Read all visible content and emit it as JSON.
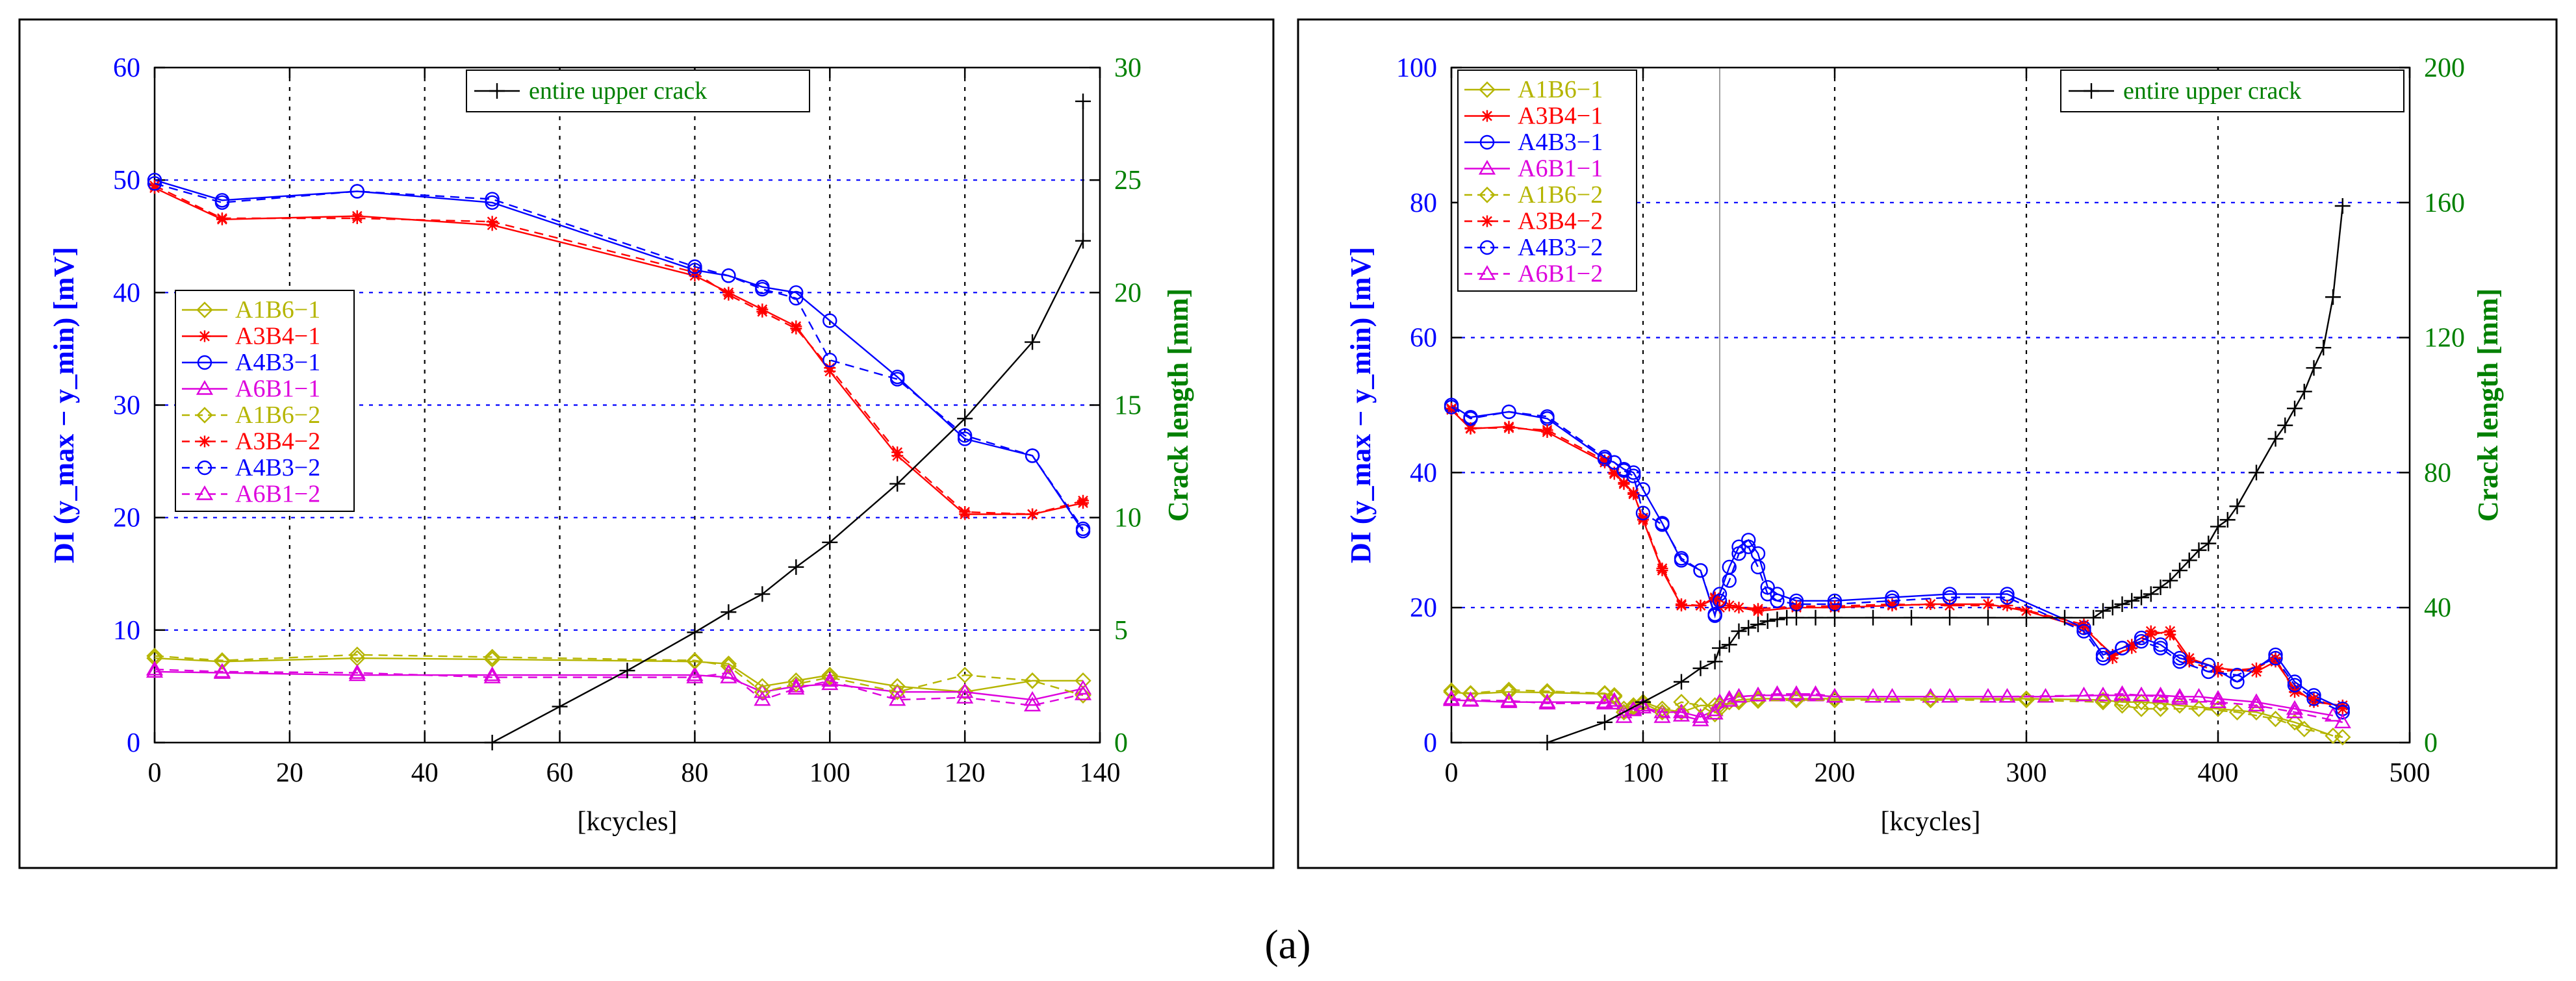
{
  "caption": "(a)",
  "colors": {
    "A1B6": "#b5b500",
    "A3B4": "#ff0000",
    "A4B3": "#0000ff",
    "A6B1": "#dd00dd",
    "crack": "#000000",
    "left_axis": "#0000ff",
    "right_axis": "#008000",
    "grid_y": "#0000ff",
    "grid_x": "#000000"
  },
  "chart_data": [
    {
      "type": "line",
      "xlabel": "[kcycles]",
      "ylabel_left": "DI (y_max − y_min) [mV]",
      "ylabel_right": "Crack length [mm]",
      "xlim": [
        0,
        140
      ],
      "ylim_left": [
        0,
        60
      ],
      "ylim_right": [
        0,
        30
      ],
      "xticks": [
        "0",
        "20",
        "40",
        "60",
        "80",
        "100",
        "120",
        "140"
      ],
      "yticks_left": [
        "0",
        "10",
        "20",
        "30",
        "40",
        "50",
        "60"
      ],
      "yticks_right": [
        "0",
        "5",
        "10",
        "15",
        "20",
        "25",
        "30"
      ],
      "extra_xtick": null,
      "legend_di": [
        "A1B6−1",
        "A3B4−1",
        "A4B3−1",
        "A6B1−1",
        "A1B6−2",
        "A3B4−2",
        "A4B3−2",
        "A6B1−2"
      ],
      "legend_crack": "entire upper crack",
      "series": [
        {
          "name": "A1B6−1",
          "sensor": "A1B6",
          "dash": false,
          "marker": "diamond",
          "x": [
            0,
            10,
            30,
            50,
            80,
            85,
            90,
            95,
            100,
            110,
            120,
            130,
            137.5
          ],
          "y": [
            7.5,
            7.2,
            7.5,
            7.4,
            7.2,
            7.0,
            5.0,
            5.5,
            6.0,
            5.0,
            4.5,
            5.5,
            5.5
          ]
        },
        {
          "name": "A3B4−1",
          "sensor": "A3B4",
          "dash": false,
          "marker": "star",
          "x": [
            0,
            10,
            30,
            50,
            80,
            85,
            90,
            95,
            100,
            110,
            120,
            130,
            137.5
          ],
          "y": [
            49.3,
            46.5,
            46.8,
            46.0,
            41.5,
            40.0,
            38.5,
            37.0,
            33.0,
            25.5,
            20.3,
            20.3,
            21.3
          ]
        },
        {
          "name": "A4B3−1",
          "sensor": "A4B3",
          "dash": false,
          "marker": "circle",
          "x": [
            0,
            10,
            30,
            50,
            80,
            85,
            90,
            95,
            100,
            110,
            120,
            130,
            137.5
          ],
          "y": [
            50.0,
            48.2,
            49.0,
            48.0,
            42.0,
            41.5,
            40.5,
            40.0,
            37.5,
            32.5,
            27.0,
            25.5,
            18.8
          ]
        },
        {
          "name": "A6B1−1",
          "sensor": "A6B1",
          "dash": false,
          "marker": "triangle",
          "x": [
            0,
            10,
            30,
            50,
            80,
            85,
            90,
            95,
            100,
            110,
            120,
            130,
            137.5
          ],
          "y": [
            6.3,
            6.2,
            6.0,
            6.0,
            6.0,
            5.8,
            4.5,
            5.0,
            5.2,
            4.5,
            4.5,
            3.8,
            4.8
          ]
        },
        {
          "name": "A1B6−2",
          "sensor": "A1B6",
          "dash": true,
          "marker": "diamond",
          "x": [
            0,
            10,
            30,
            50,
            80,
            85,
            90,
            95,
            100,
            110,
            120,
            130,
            137.5
          ],
          "y": [
            7.7,
            7.3,
            7.8,
            7.6,
            7.3,
            6.8,
            4.5,
            5.2,
            5.8,
            4.5,
            6.0,
            5.5,
            4.2
          ]
        },
        {
          "name": "A3B4−2",
          "sensor": "A3B4",
          "dash": true,
          "marker": "star",
          "x": [
            0,
            10,
            30,
            50,
            80,
            85,
            90,
            95,
            100,
            110,
            120,
            130,
            137.5
          ],
          "y": [
            49.5,
            46.6,
            46.6,
            46.3,
            41.8,
            39.8,
            38.3,
            36.8,
            33.3,
            25.8,
            20.5,
            20.3,
            21.5
          ]
        },
        {
          "name": "A4B3−2",
          "sensor": "A4B3",
          "dash": true,
          "marker": "circle",
          "x": [
            0,
            10,
            30,
            50,
            80,
            85,
            90,
            95,
            100,
            110,
            120,
            130,
            137.5
          ],
          "y": [
            49.7,
            48.0,
            49.0,
            48.3,
            42.3,
            41.5,
            40.3,
            39.5,
            34.0,
            32.3,
            27.3,
            25.5,
            19.0
          ]
        },
        {
          "name": "A6B1−2",
          "sensor": "A6B1",
          "dash": true,
          "marker": "triangle",
          "x": [
            0,
            10,
            30,
            50,
            80,
            85,
            90,
            95,
            100,
            110,
            120,
            130,
            137.5
          ],
          "y": [
            6.5,
            6.3,
            6.2,
            5.8,
            5.8,
            6.2,
            3.8,
            4.8,
            5.5,
            3.8,
            4.0,
            3.3,
            4.3
          ]
        }
      ],
      "crack": {
        "name": "entire upper crack",
        "x": [
          50,
          60,
          70,
          80,
          85,
          90,
          95,
          100,
          110,
          120,
          130,
          137.5,
          137.5
        ],
        "y": [
          0,
          1.6,
          3.2,
          4.9,
          5.8,
          6.6,
          7.8,
          8.9,
          11.5,
          14.4,
          17.8,
          22.3,
          28.5
        ]
      }
    },
    {
      "type": "line",
      "xlabel": "[kcycles]",
      "ylabel_left": "DI (y_max − y_min) [mV]",
      "ylabel_right": "Crack length [mm]",
      "xlim": [
        0,
        500
      ],
      "ylim_left": [
        0,
        100
      ],
      "ylim_right": [
        0,
        200
      ],
      "xticks": [
        "0",
        "100",
        "200",
        "300",
        "400",
        "500"
      ],
      "yticks_left": [
        "0",
        "20",
        "40",
        "60",
        "80",
        "100"
      ],
      "yticks_right": [
        "0",
        "40",
        "80",
        "120",
        "160",
        "200"
      ],
      "extra_xtick": {
        "label": "II",
        "x": 140
      },
      "legend_di": [
        "A1B6−1",
        "A3B4−1",
        "A4B3−1",
        "A6B1−1",
        "A1B6−2",
        "A3B4−2",
        "A4B3−2",
        "A6B1−2"
      ],
      "legend_crack": "entire upper crack",
      "series": [
        {
          "name": "A1B6−1",
          "sensor": "A1B6",
          "dash": false,
          "marker": "diamond",
          "x": [
            0,
            10,
            30,
            50,
            80,
            85,
            90,
            95,
            100,
            110,
            120,
            130,
            137.5,
            140,
            145,
            150,
            160,
            180,
            200,
            250,
            300,
            340,
            350,
            360,
            370,
            380,
            400,
            420,
            440,
            460
          ],
          "y": [
            7.5,
            7.2,
            7.5,
            7.4,
            7.2,
            7.0,
            5.0,
            5.5,
            6.0,
            5.0,
            4.5,
            5.5,
            5.5,
            5.0,
            6.0,
            6.3,
            6.5,
            6.5,
            6.5,
            6.5,
            6.5,
            6.3,
            6.0,
            6.0,
            5.8,
            5.5,
            5.0,
            4.5,
            3.0,
            1.0
          ]
        },
        {
          "name": "A3B4−1",
          "sensor": "A3B4",
          "dash": false,
          "marker": "star",
          "x": [
            0,
            10,
            30,
            50,
            80,
            85,
            90,
            95,
            100,
            110,
            120,
            130,
            137.5,
            140,
            150,
            160,
            180,
            200,
            230,
            250,
            280,
            300,
            330,
            345,
            355,
            365,
            375,
            385,
            400,
            420,
            430,
            440,
            450,
            465
          ],
          "y": [
            49.3,
            46.5,
            46.8,
            46.0,
            41.5,
            40.0,
            38.5,
            37.0,
            33.0,
            25.5,
            20.3,
            20.3,
            21.3,
            20.0,
            20.0,
            19.5,
            20.0,
            20.0,
            20.3,
            20.5,
            20.5,
            19.5,
            17.0,
            13.0,
            14.0,
            16.0,
            16.5,
            12.5,
            11.0,
            10.5,
            12.0,
            8.0,
            6.0,
            5.5
          ]
        },
        {
          "name": "A4B3−1",
          "sensor": "A4B3",
          "dash": false,
          "marker": "circle",
          "x": [
            0,
            10,
            30,
            50,
            80,
            85,
            90,
            95,
            100,
            110,
            120,
            130,
            137.5,
            140,
            145,
            150,
            155,
            160,
            165,
            170,
            180,
            200,
            230,
            260,
            290,
            330,
            340,
            350,
            360,
            370,
            380,
            395,
            410,
            430,
            440,
            450,
            465
          ],
          "y": [
            50.0,
            48.2,
            49.0,
            48.0,
            42.0,
            41.5,
            40.5,
            40.0,
            37.5,
            32.5,
            27.0,
            25.5,
            18.8,
            22.0,
            26.0,
            29.0,
            30.0,
            28.0,
            23.0,
            22.0,
            21.0,
            21.0,
            21.5,
            22.0,
            22.0,
            17.0,
            13.0,
            14.0,
            15.5,
            14.5,
            12.5,
            11.5,
            9.0,
            13.0,
            9.0,
            7.0,
            5.0
          ]
        },
        {
          "name": "A6B1−1",
          "sensor": "A6B1",
          "dash": false,
          "marker": "triangle",
          "x": [
            0,
            10,
            30,
            50,
            80,
            85,
            90,
            95,
            100,
            110,
            120,
            130,
            137.5,
            140,
            145,
            150,
            160,
            170,
            180,
            190,
            200,
            220,
            250,
            280,
            310,
            340,
            350,
            360,
            370,
            380,
            390,
            400,
            420,
            440,
            460
          ],
          "y": [
            6.3,
            6.2,
            6.0,
            6.0,
            6.0,
            5.8,
            4.5,
            5.0,
            5.2,
            4.5,
            4.5,
            3.8,
            4.8,
            6.0,
            6.5,
            6.8,
            7.0,
            7.0,
            7.0,
            7.0,
            6.8,
            6.8,
            6.8,
            6.8,
            6.8,
            7.0,
            7.0,
            7.0,
            7.0,
            6.8,
            6.8,
            6.5,
            6.0,
            5.0,
            4.0
          ]
        },
        {
          "name": "A1B6−2",
          "sensor": "A1B6",
          "dash": true,
          "marker": "diamond",
          "x": [
            0,
            10,
            30,
            50,
            80,
            85,
            90,
            95,
            100,
            110,
            120,
            130,
            137.5,
            140,
            150,
            160,
            180,
            200,
            250,
            300,
            340,
            350,
            360,
            370,
            390,
            410,
            430,
            445,
            465
          ],
          "y": [
            7.7,
            7.3,
            7.8,
            7.6,
            7.3,
            6.8,
            4.5,
            5.2,
            5.8,
            4.5,
            6.0,
            5.5,
            4.2,
            5.5,
            6.0,
            6.2,
            6.3,
            6.3,
            6.3,
            6.3,
            6.0,
            5.5,
            5.0,
            5.0,
            5.0,
            4.5,
            3.5,
            2.0,
            0.8
          ]
        },
        {
          "name": "A3B4−2",
          "sensor": "A3B4",
          "dash": true,
          "marker": "star",
          "x": [
            0,
            10,
            30,
            50,
            80,
            85,
            90,
            95,
            100,
            110,
            120,
            130,
            137.5,
            145,
            160,
            180,
            200,
            230,
            260,
            290,
            330,
            345,
            355,
            365,
            375,
            385,
            400,
            420,
            430,
            440,
            450,
            465
          ],
          "y": [
            49.5,
            46.6,
            46.6,
            46.3,
            41.8,
            39.8,
            38.3,
            36.8,
            33.3,
            25.8,
            20.5,
            20.3,
            21.5,
            20.3,
            19.8,
            20.2,
            20.2,
            20.5,
            20.3,
            20.3,
            17.5,
            12.5,
            14.5,
            16.5,
            16.0,
            12.0,
            10.5,
            11.0,
            12.5,
            7.5,
            6.5,
            5.0
          ]
        },
        {
          "name": "A4B3−2",
          "sensor": "A4B3",
          "dash": true,
          "marker": "circle",
          "x": [
            0,
            10,
            30,
            50,
            80,
            85,
            90,
            95,
            100,
            110,
            120,
            130,
            137.5,
            140,
            145,
            150,
            155,
            160,
            165,
            170,
            180,
            200,
            230,
            260,
            290,
            330,
            340,
            350,
            360,
            370,
            380,
            395,
            410,
            430,
            440,
            450,
            465
          ],
          "y": [
            49.7,
            48.0,
            49.0,
            48.3,
            42.3,
            41.5,
            40.3,
            39.5,
            34.0,
            32.3,
            27.3,
            25.5,
            19.0,
            21.0,
            24.0,
            28.0,
            29.0,
            26.0,
            22.0,
            21.0,
            20.5,
            20.5,
            21.0,
            21.5,
            21.5,
            16.5,
            12.5,
            14.0,
            15.0,
            14.0,
            12.0,
            10.5,
            10.0,
            12.5,
            8.5,
            6.5,
            4.5
          ]
        },
        {
          "name": "A6B1−2",
          "sensor": "A6B1",
          "dash": true,
          "marker": "triangle",
          "x": [
            0,
            10,
            30,
            50,
            80,
            85,
            90,
            95,
            100,
            110,
            120,
            130,
            137.5,
            145,
            150,
            160,
            170,
            180,
            190,
            200,
            230,
            260,
            290,
            330,
            350,
            360,
            370,
            380,
            400,
            420,
            440,
            465
          ],
          "y": [
            6.5,
            6.3,
            6.2,
            5.8,
            5.8,
            6.2,
            3.8,
            4.8,
            5.5,
            3.8,
            4.0,
            3.3,
            4.3,
            6.2,
            6.8,
            7.0,
            7.2,
            7.2,
            7.2,
            6.8,
            6.8,
            6.8,
            6.8,
            7.0,
            7.2,
            7.0,
            6.8,
            6.5,
            6.0,
            5.5,
            4.5,
            3.0
          ]
        }
      ],
      "crack": {
        "name": "entire upper crack",
        "x": [
          50,
          80,
          100,
          120,
          130,
          137.5,
          140,
          145,
          150,
          155,
          160,
          165,
          170,
          175,
          180,
          190,
          200,
          220,
          240,
          260,
          280,
          300,
          320,
          335,
          340,
          345,
          350,
          355,
          360,
          365,
          370,
          375,
          380,
          385,
          390,
          395,
          400,
          405,
          410,
          420,
          430,
          435,
          440,
          445,
          450,
          455,
          460,
          465
        ],
        "y": [
          0,
          6,
          12,
          18,
          22,
          24,
          28,
          29,
          33,
          34,
          35,
          36,
          36.5,
          37,
          37,
          37,
          37,
          37,
          37,
          37,
          37,
          37,
          37,
          37,
          39,
          40,
          41,
          42,
          43,
          44,
          46,
          48,
          51,
          54,
          57,
          59,
          64,
          66,
          70,
          80,
          90,
          94,
          99,
          104,
          111,
          117,
          132,
          159
        ]
      }
    }
  ]
}
